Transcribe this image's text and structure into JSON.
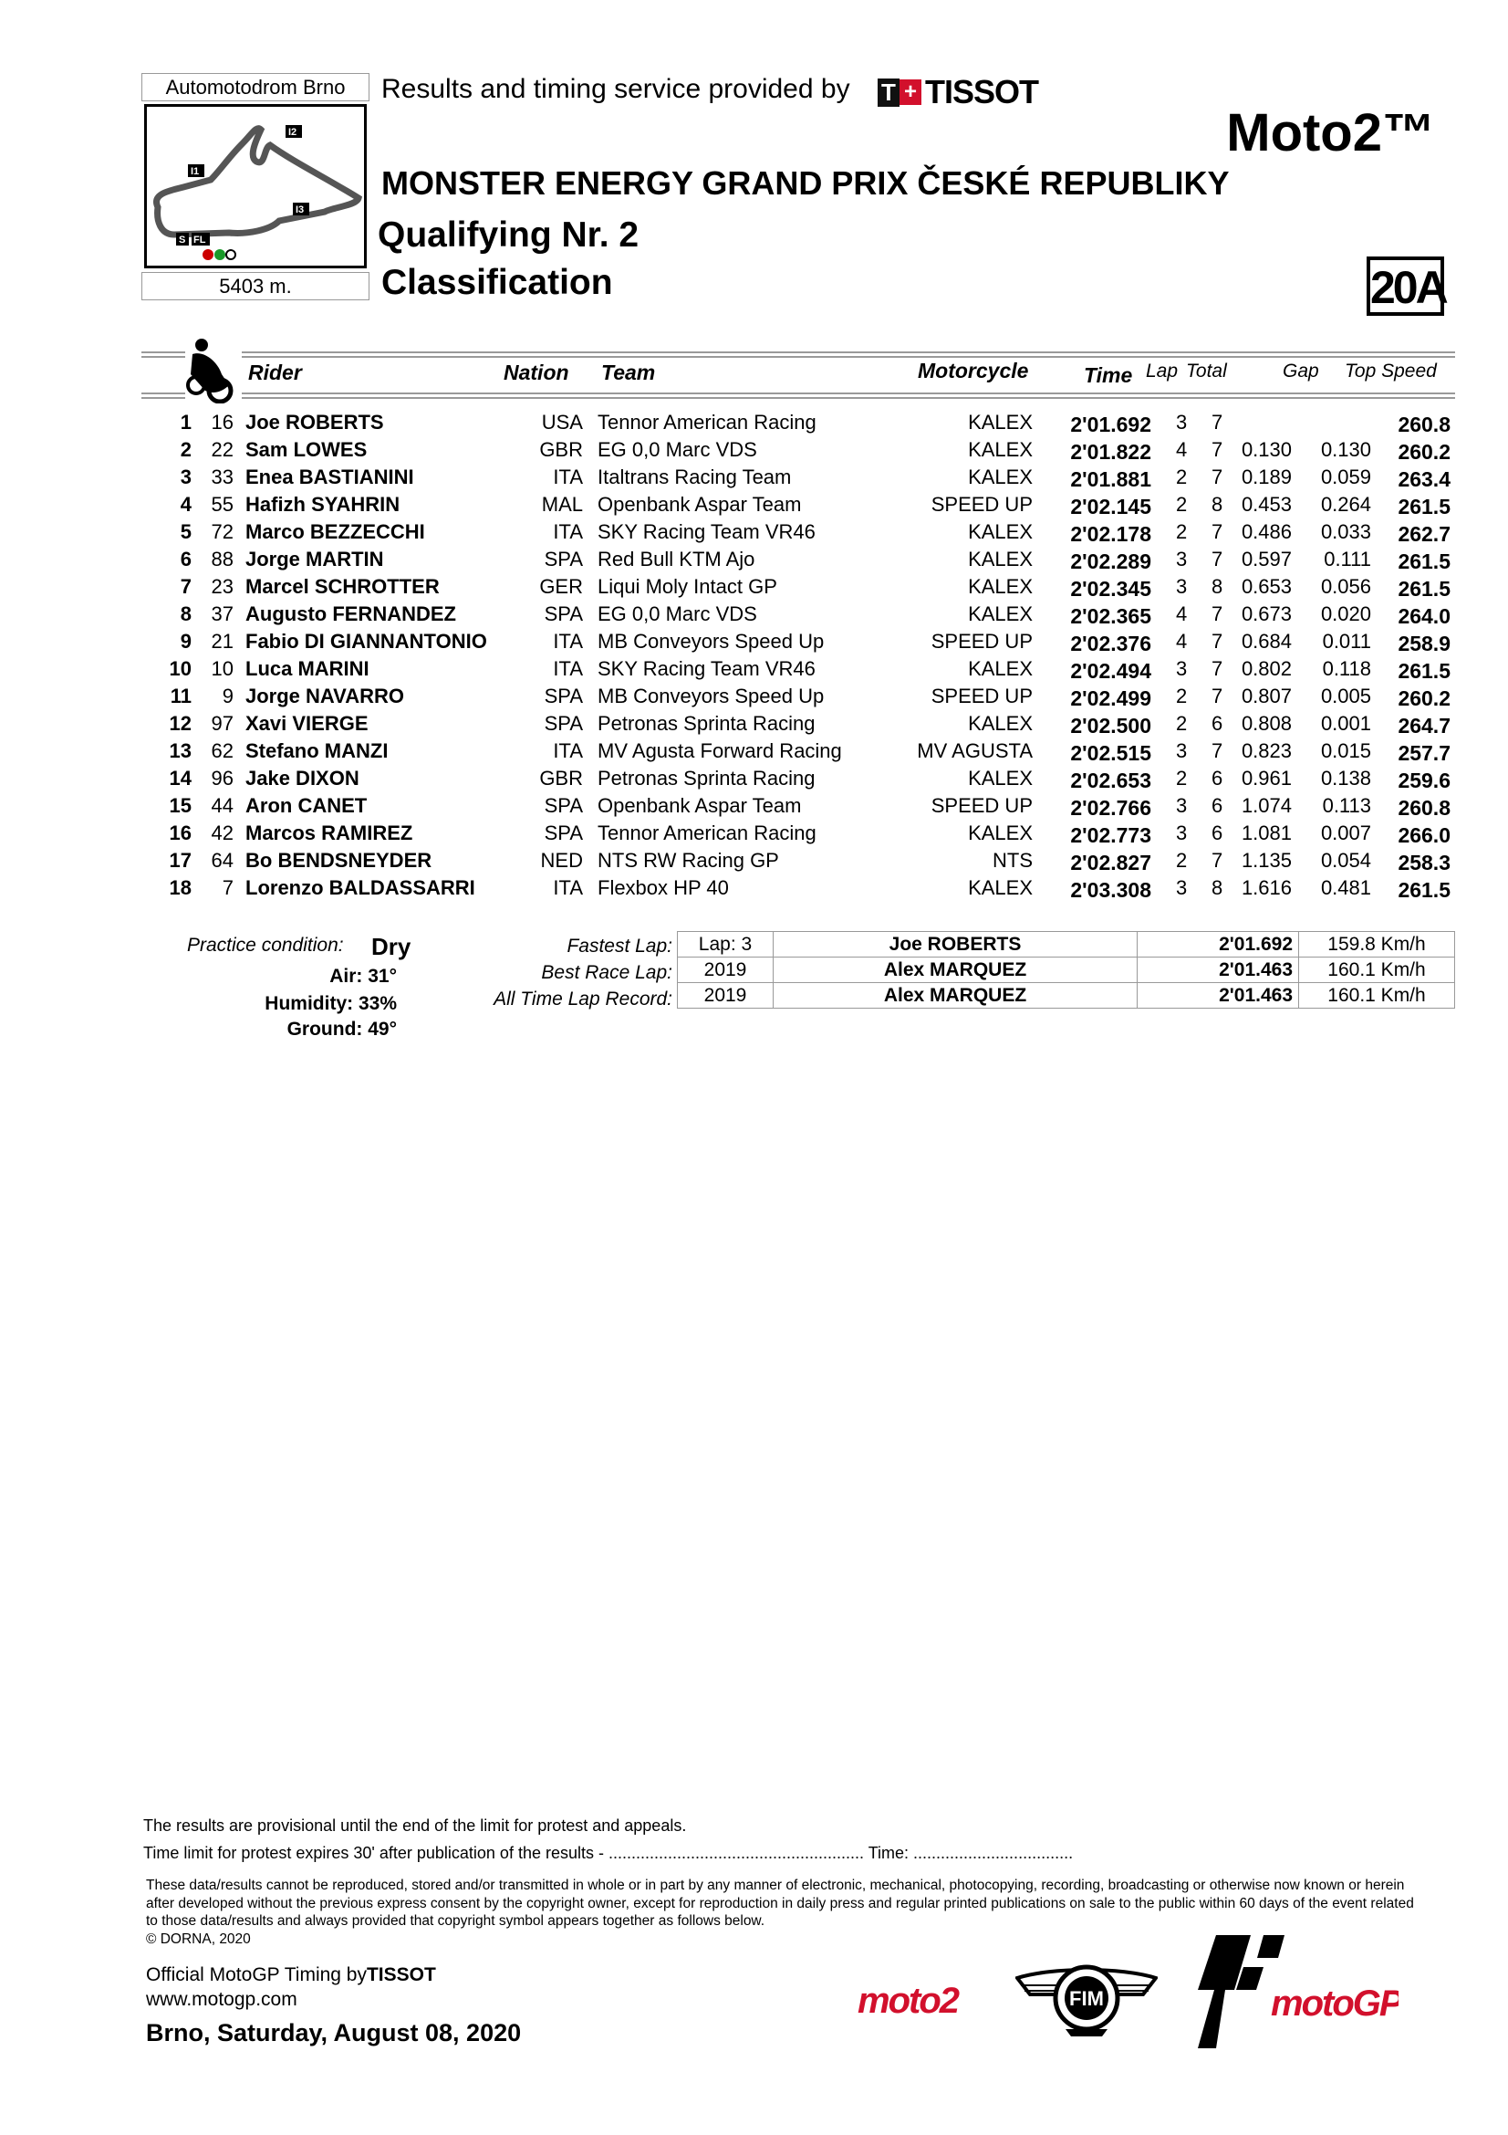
{
  "header": {
    "circuit_name": "Automotodrom Brno",
    "circuit_length": "5403 m.",
    "track_markers": [
      "I1",
      "I2",
      "I3",
      "S",
      "FL"
    ],
    "provider_text": "Results and timing service provided by",
    "provider_logo": "TISSOT",
    "category": "Moto2™",
    "event_title": "MONSTER ENERGY GRAND PRIX ČESKÉ REPUBLIKY",
    "session": "Qualifying Nr. 2",
    "document_type": "Classification",
    "document_code": "20A"
  },
  "table": {
    "columns": {
      "rider": "Rider",
      "nation": "Nation",
      "team": "Team",
      "motorcycle": "Motorcycle",
      "time": "Time",
      "lap": "Lap",
      "total": "Total",
      "gap": "Gap",
      "top_speed": "Top Speed"
    },
    "rows": [
      {
        "pos": "1",
        "num": "16",
        "rider": "Joe ROBERTS",
        "nation": "USA",
        "team": "Tennor American Racing",
        "motorcycle": "KALEX",
        "time": "2'01.692",
        "lap": "3",
        "total": "7",
        "gap": "",
        "diff": "",
        "top_speed": "260.8"
      },
      {
        "pos": "2",
        "num": "22",
        "rider": "Sam LOWES",
        "nation": "GBR",
        "team": "EG 0,0 Marc VDS",
        "motorcycle": "KALEX",
        "time": "2'01.822",
        "lap": "4",
        "total": "7",
        "gap": "0.130",
        "diff": "0.130",
        "top_speed": "260.2"
      },
      {
        "pos": "3",
        "num": "33",
        "rider": "Enea BASTIANINI",
        "nation": "ITA",
        "team": "Italtrans Racing Team",
        "motorcycle": "KALEX",
        "time": "2'01.881",
        "lap": "2",
        "total": "7",
        "gap": "0.189",
        "diff": "0.059",
        "top_speed": "263.4"
      },
      {
        "pos": "4",
        "num": "55",
        "rider": "Hafizh SYAHRIN",
        "nation": "MAL",
        "team": "Openbank Aspar Team",
        "motorcycle": "SPEED UP",
        "time": "2'02.145",
        "lap": "2",
        "total": "8",
        "gap": "0.453",
        "diff": "0.264",
        "top_speed": "261.5"
      },
      {
        "pos": "5",
        "num": "72",
        "rider": "Marco BEZZECCHI",
        "nation": "ITA",
        "team": "SKY Racing Team VR46",
        "motorcycle": "KALEX",
        "time": "2'02.178",
        "lap": "2",
        "total": "7",
        "gap": "0.486",
        "diff": "0.033",
        "top_speed": "262.7"
      },
      {
        "pos": "6",
        "num": "88",
        "rider": "Jorge MARTIN",
        "nation": "SPA",
        "team": "Red Bull KTM Ajo",
        "motorcycle": "KALEX",
        "time": "2'02.289",
        "lap": "3",
        "total": "7",
        "gap": "0.597",
        "diff": "0.111",
        "top_speed": "261.5"
      },
      {
        "pos": "7",
        "num": "23",
        "rider": "Marcel SCHROTTER",
        "nation": "GER",
        "team": "Liqui Moly Intact GP",
        "motorcycle": "KALEX",
        "time": "2'02.345",
        "lap": "3",
        "total": "8",
        "gap": "0.653",
        "diff": "0.056",
        "top_speed": "261.5"
      },
      {
        "pos": "8",
        "num": "37",
        "rider": "Augusto FERNANDEZ",
        "nation": "SPA",
        "team": "EG 0,0 Marc VDS",
        "motorcycle": "KALEX",
        "time": "2'02.365",
        "lap": "4",
        "total": "7",
        "gap": "0.673",
        "diff": "0.020",
        "top_speed": "264.0"
      },
      {
        "pos": "9",
        "num": "21",
        "rider": "Fabio DI GIANNANTONIO",
        "nation": "ITA",
        "team": "MB Conveyors Speed Up",
        "motorcycle": "SPEED UP",
        "time": "2'02.376",
        "lap": "4",
        "total": "7",
        "gap": "0.684",
        "diff": "0.011",
        "top_speed": "258.9"
      },
      {
        "pos": "10",
        "num": "10",
        "rider": "Luca MARINI",
        "nation": "ITA",
        "team": "SKY Racing Team VR46",
        "motorcycle": "KALEX",
        "time": "2'02.494",
        "lap": "3",
        "total": "7",
        "gap": "0.802",
        "diff": "0.118",
        "top_speed": "261.5"
      },
      {
        "pos": "11",
        "num": "9",
        "rider": "Jorge NAVARRO",
        "nation": "SPA",
        "team": "MB Conveyors Speed Up",
        "motorcycle": "SPEED UP",
        "time": "2'02.499",
        "lap": "2",
        "total": "7",
        "gap": "0.807",
        "diff": "0.005",
        "top_speed": "260.2"
      },
      {
        "pos": "12",
        "num": "97",
        "rider": "Xavi VIERGE",
        "nation": "SPA",
        "team": "Petronas Sprinta Racing",
        "motorcycle": "KALEX",
        "time": "2'02.500",
        "lap": "2",
        "total": "6",
        "gap": "0.808",
        "diff": "0.001",
        "top_speed": "264.7"
      },
      {
        "pos": "13",
        "num": "62",
        "rider": "Stefano MANZI",
        "nation": "ITA",
        "team": "MV Agusta Forward Racing",
        "motorcycle": "MV AGUSTA",
        "time": "2'02.515",
        "lap": "3",
        "total": "7",
        "gap": "0.823",
        "diff": "0.015",
        "top_speed": "257.7"
      },
      {
        "pos": "14",
        "num": "96",
        "rider": "Jake DIXON",
        "nation": "GBR",
        "team": "Petronas Sprinta Racing",
        "motorcycle": "KALEX",
        "time": "2'02.653",
        "lap": "2",
        "total": "6",
        "gap": "0.961",
        "diff": "0.138",
        "top_speed": "259.6"
      },
      {
        "pos": "15",
        "num": "44",
        "rider": "Aron CANET",
        "nation": "SPA",
        "team": "Openbank Aspar Team",
        "motorcycle": "SPEED UP",
        "time": "2'02.766",
        "lap": "3",
        "total": "6",
        "gap": "1.074",
        "diff": "0.113",
        "top_speed": "260.8"
      },
      {
        "pos": "16",
        "num": "42",
        "rider": "Marcos RAMIREZ",
        "nation": "SPA",
        "team": "Tennor American Racing",
        "motorcycle": "KALEX",
        "time": "2'02.773",
        "lap": "3",
        "total": "6",
        "gap": "1.081",
        "diff": "0.007",
        "top_speed": "266.0"
      },
      {
        "pos": "17",
        "num": "64",
        "rider": "Bo BENDSNEYDER",
        "nation": "NED",
        "team": "NTS RW Racing GP",
        "motorcycle": "NTS",
        "time": "2'02.827",
        "lap": "2",
        "total": "7",
        "gap": "1.135",
        "diff": "0.054",
        "top_speed": "258.3"
      },
      {
        "pos": "18",
        "num": "7",
        "rider": "Lorenzo BALDASSARRI",
        "nation": "ITA",
        "team": "Flexbox HP 40",
        "motorcycle": "KALEX",
        "time": "2'03.308",
        "lap": "3",
        "total": "8",
        "gap": "1.616",
        "diff": "0.481",
        "top_speed": "261.5"
      }
    ]
  },
  "conditions": {
    "practice_label": "Practice condition:",
    "practice_value": "Dry",
    "air": "Air: 31°",
    "humidity": "Humidity: 33%",
    "ground": "Ground: 49°"
  },
  "laps": [
    {
      "label": "Fastest Lap:",
      "ref": "Lap: 3",
      "rider": "Joe ROBERTS",
      "time": "2'01.692",
      "speed": "159.8 Km/h"
    },
    {
      "label": "Best Race Lap:",
      "ref": "2019",
      "rider": "Alex MARQUEZ",
      "time": "2'01.463",
      "speed": "160.1 Km/h"
    },
    {
      "label": "All Time Lap Record:",
      "ref": "2019",
      "rider": "Alex MARQUEZ",
      "time": "2'01.463",
      "speed": "160.1 Km/h"
    }
  ],
  "footer": {
    "provisional": "The results are provisional until the end of the limit for protest and appeals.",
    "protest": "Time limit for protest expires 30' after publication of the results  -  ........................................................ Time:   ...................................",
    "legal": "These data/results cannot be reproduced, stored and/or transmitted in whole or in part by any manner of electronic, mechanical, photocopying, recording, broadcasting or otherwise now known or herein after developed without the previous express consent by the copyright owner, except for reproduction in daily press and regular printed publications on sale to the public within 60 days of the event related to those data/results and always provided that copyright symbol appears together as follows below.",
    "copyright": "© DORNA, 2020",
    "timing_prefix": "Official MotoGP Timing by",
    "timing_brand": "TISSOT",
    "website": "www.motogp.com",
    "place_date": "Brno, Saturday, August 08, 2020",
    "logos": {
      "moto2": "moto2",
      "fim": "FIM",
      "motogp": "motoGP"
    }
  },
  "colors": {
    "accent_red": "#d2102c",
    "rule_gray": "#999999"
  }
}
